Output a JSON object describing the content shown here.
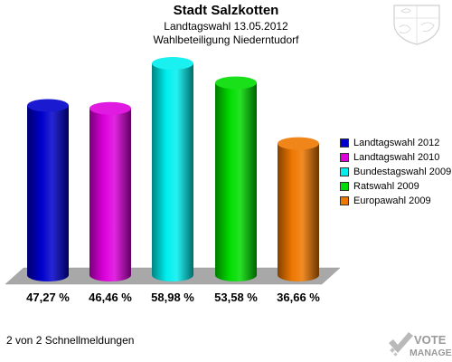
{
  "header": {
    "title": "Stadt Salzkotten",
    "subtitle_line1": "Landtagswahl 13.05.2012",
    "subtitle_line2": "Wahlbeteiligung Niederntudorf"
  },
  "footer": {
    "text": "2 von 2 Schnellmeldungen"
  },
  "logo": {
    "line1": "VOTE",
    "line2": "MANAGER"
  },
  "chart_data": {
    "type": "bar",
    "title": "Stadt Salzkotten",
    "categories": [
      "Landtagswahl 2012",
      "Landtagswahl 2010",
      "Bundestagswahl 2009",
      "Ratswahl 2009",
      "Europawahl 2009"
    ],
    "values": [
      47.27,
      46.46,
      58.98,
      53.58,
      36.66
    ],
    "value_labels": [
      "47,27 %",
      "46,46 %",
      "58,98 %",
      "53,58 %",
      "36,66 %"
    ],
    "colors": [
      "#0000cc",
      "#dd00dd",
      "#00eeee",
      "#00dd00",
      "#ee7700"
    ],
    "legend": {
      "position": "right",
      "entries": [
        "Landtagswahl 2012",
        "Landtagswahl 2010",
        "Bundestagswahl 2009",
        "Ratswahl 2009",
        "Europawahl 2009"
      ]
    },
    "ylim": [
      0,
      60
    ],
    "grid": false,
    "style": "3d-cylinders"
  }
}
